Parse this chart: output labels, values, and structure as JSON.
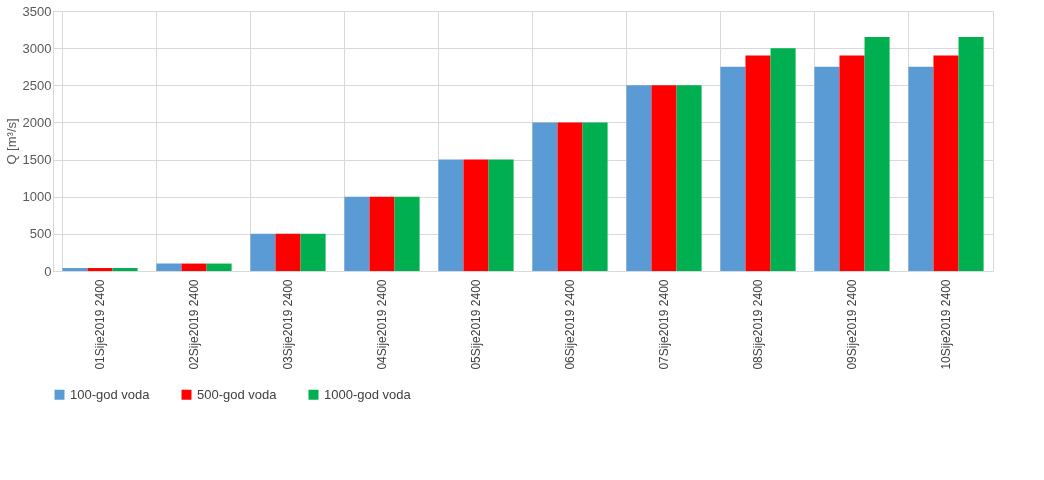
{
  "chart_data": {
    "type": "bar",
    "ylabel": "Q [m³/s]",
    "categories": [
      "01Sije2019 2400",
      "02Sije2019 2400",
      "03Sije2019 2400",
      "04Sije2019 2400",
      "05Sije2019 2400",
      "06Sije2019 2400",
      "07Sije2019 2400",
      "08Sije2019 2400",
      "09Sije2019 2400",
      "10Sije2019 2400"
    ],
    "series": [
      {
        "name": "100-god voda",
        "color": "#5b9bd5",
        "values": [
          40,
          100,
          500,
          1000,
          1500,
          2000,
          2500,
          2750,
          2750,
          2750
        ]
      },
      {
        "name": "500-god voda",
        "color": "#ff0000",
        "values": [
          40,
          100,
          500,
          1000,
          1500,
          2000,
          2500,
          2900,
          2900,
          2900
        ]
      },
      {
        "name": "1000-god voda",
        "color": "#00b050",
        "values": [
          40,
          100,
          500,
          1000,
          1500,
          2000,
          2500,
          3000,
          3150,
          3150
        ]
      }
    ],
    "ylim": [
      0,
      3500
    ],
    "yticks": [
      0,
      500,
      1000,
      1500,
      2000,
      2500,
      3000,
      3500
    ],
    "grid": true,
    "legend": "bottom"
  }
}
